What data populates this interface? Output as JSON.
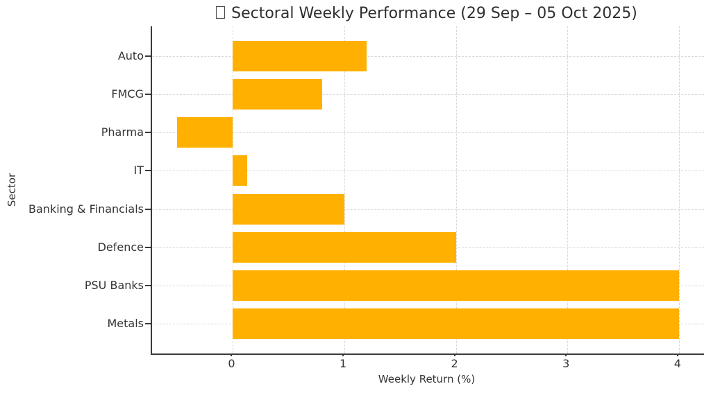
{
  "chart_data": {
    "type": "bar",
    "orientation": "horizontal",
    "title": "Sectoral Weekly Performance (29 Sep – 05 Oct 2025)",
    "title_leading_icon": "missing-glyph-box",
    "categories": [
      "Auto",
      "FMCG",
      "Pharma",
      "IT",
      "Banking & Financials",
      "Defence",
      "PSU Banks",
      "Metals"
    ],
    "values": [
      1.2,
      0.8,
      -0.5,
      0.13,
      1.0,
      2.0,
      4.0,
      4.0
    ],
    "xlabel": "Weekly Return (%)",
    "ylabel": "Sector",
    "xticks": [
      0,
      1,
      2,
      3,
      4
    ],
    "xlim": [
      -0.725,
      4.225
    ],
    "grid": true,
    "grid_style": "dashed",
    "legend_position": "none",
    "bar_color": "#FFB000",
    "grid_color": "#D8D8D8",
    "axis_color": "#3A3A3A",
    "text_color": "#333333",
    "background": "#FFFFFF"
  }
}
